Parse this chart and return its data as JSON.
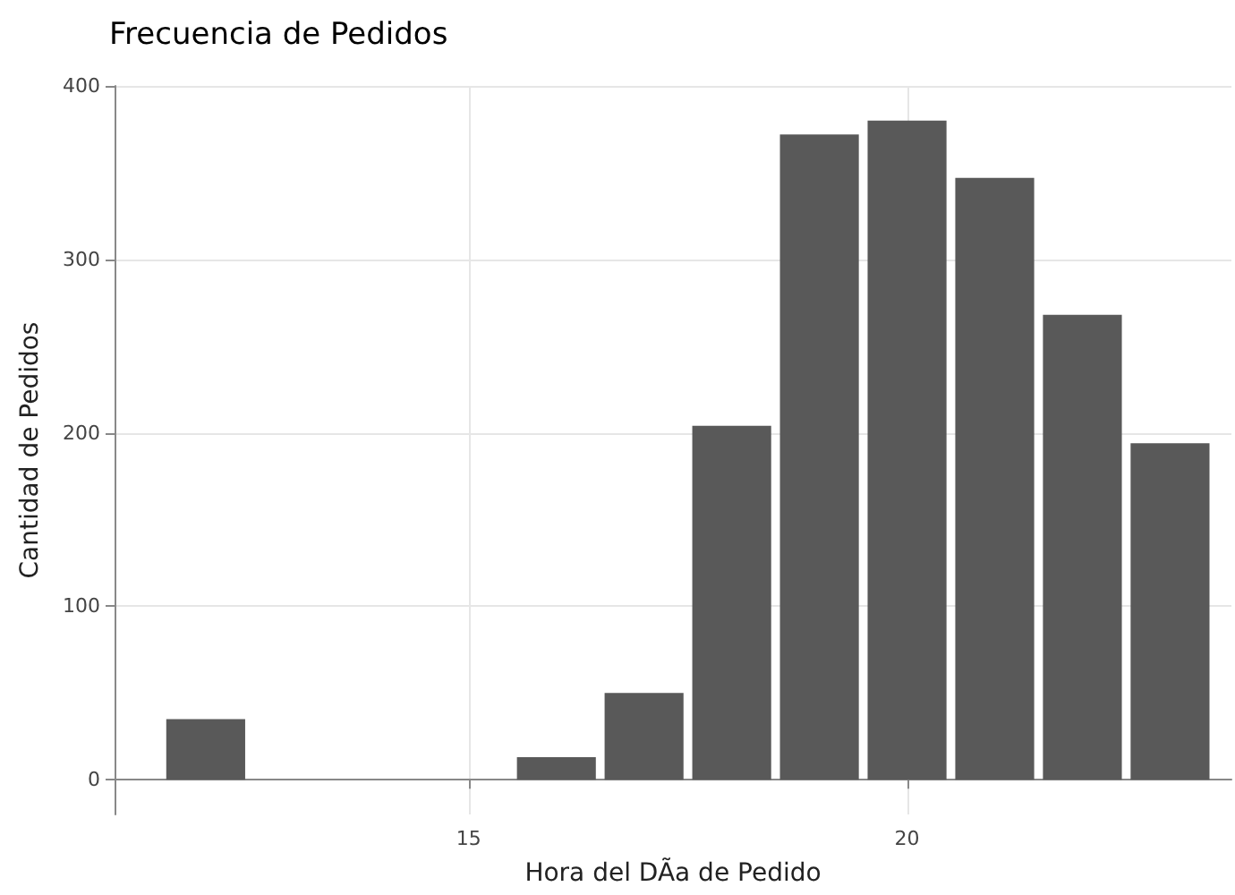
{
  "chart_data": {
    "type": "bar",
    "title": "Frecuencia de Pedidos",
    "xlabel": "Hora del DÃa de Pedido",
    "ylabel": "Cantidad de Pedidos",
    "x": [
      12,
      16,
      17,
      18,
      19,
      20,
      21,
      22,
      23
    ],
    "values": [
      35,
      13,
      50,
      204,
      372,
      380,
      347,
      268,
      194
    ],
    "color": "#595959",
    "xlim": [
      10.96,
      23.7
    ],
    "xticks": [
      15,
      20
    ],
    "ylim": [
      -20,
      400
    ],
    "yticks": [
      0,
      100,
      200,
      300,
      400
    ],
    "grid": true
  }
}
